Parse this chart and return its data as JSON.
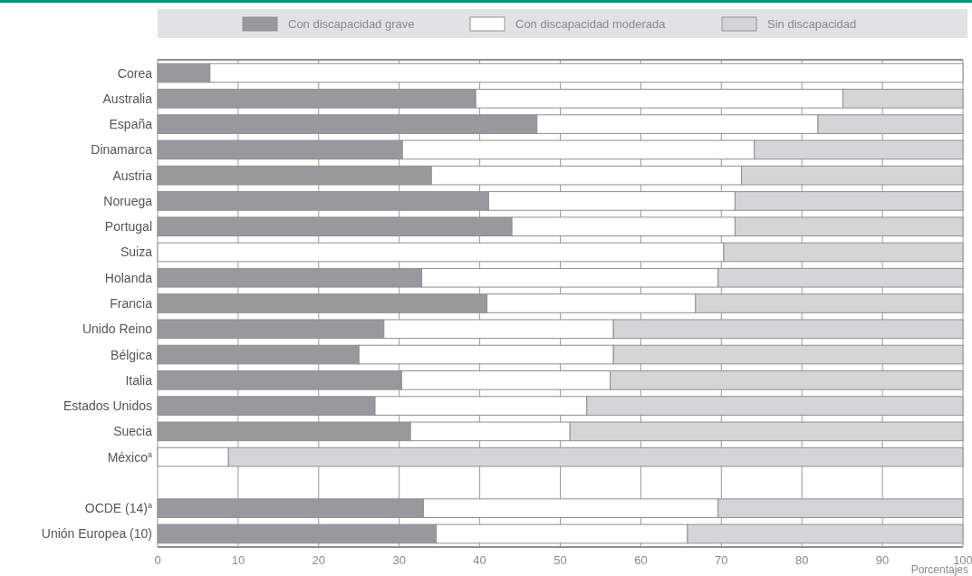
{
  "chart_data": {
    "type": "bar",
    "orientation": "horizontal",
    "stacked": true,
    "categories": [
      "Corea",
      "Australia",
      "España",
      "Dinamarca",
      "Austria",
      "Noruega",
      "Portugal",
      "Suiza",
      "Holanda",
      "Francia",
      "Unido Reino",
      "Bélgica",
      "Italia",
      "Estados Unidos",
      "Suecia",
      "México$^{a}$",
      null,
      "OCDE (14)$^{a}$",
      "Unión Europea (10)"
    ],
    "series": [
      {
        "name": "Con discapacidad grave",
        "color": "#98999d",
        "values": [
          6.5,
          39.5,
          47.1,
          30.4,
          34.0,
          41.1,
          44.0,
          0,
          32.8,
          40.9,
          28.1,
          25.0,
          30.3,
          27.0,
          31.4,
          0,
          null,
          33.0,
          34.6
        ]
      },
      {
        "name": "Con discapacidad moderada",
        "color": "#ffffff",
        "values": [
          93.5,
          45.6,
          34.9,
          43.7,
          38.5,
          30.6,
          27.7,
          70.3,
          36.8,
          25.9,
          28.5,
          31.6,
          25.9,
          26.3,
          19.8,
          8.8,
          null,
          36.6,
          31.2
        ]
      },
      {
        "name": "Sin discapacidad",
        "color": "#d5d5d7",
        "values": [
          0,
          14.9,
          18.0,
          25.9,
          27.5,
          28.3,
          28.3,
          29.7,
          30.4,
          33.2,
          43.4,
          43.4,
          43.8,
          46.7,
          48.8,
          91.2,
          null,
          30.4,
          34.2
        ]
      }
    ],
    "xlim": [
      0,
      100
    ],
    "xticks": [
      0,
      10,
      20,
      30,
      40,
      50,
      60,
      70,
      80,
      90,
      100
    ],
    "xlabel": "Porcentajes",
    "grid": "x",
    "legend": "top"
  }
}
